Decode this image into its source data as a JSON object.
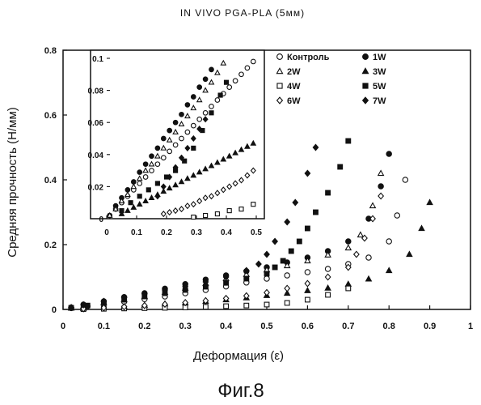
{
  "chart_data": {
    "type": "scatter",
    "title": "IN VIVO PGA-PLA (5мм)",
    "xlabel": "Деформация (ε)",
    "ylabel": "Средняя прочность (Н/мм)",
    "xlim": [
      0,
      1
    ],
    "ylim": [
      0,
      0.8
    ],
    "xticks": [
      "0",
      "0.1",
      "0.2",
      "0.3",
      "0.4",
      "0.5",
      "0.6",
      "0.7",
      "0.8",
      "0.9",
      "1"
    ],
    "yticks": [
      "0",
      "0.2",
      "0.4",
      "0.6",
      "0.8"
    ],
    "grid": false,
    "legend_position": "top-right",
    "series": [
      {
        "name": "Контроль",
        "marker": "circle-open",
        "x": [
          0.02,
          0.06,
          0.1,
          0.15,
          0.2,
          0.25,
          0.3,
          0.35,
          0.4,
          0.45,
          0.5,
          0.55,
          0.6,
          0.65,
          0.7,
          0.75,
          0.8,
          0.82,
          0.84
        ],
        "y": [
          0.004,
          0.01,
          0.016,
          0.024,
          0.032,
          0.04,
          0.05,
          0.06,
          0.071,
          0.083,
          0.095,
          0.105,
          0.115,
          0.125,
          0.14,
          0.16,
          0.21,
          0.29,
          0.4
        ]
      },
      {
        "name": "1W",
        "marker": "circle-filled",
        "x": [
          0.02,
          0.05,
          0.1,
          0.15,
          0.2,
          0.25,
          0.3,
          0.35,
          0.4,
          0.45,
          0.5,
          0.55,
          0.6,
          0.65,
          0.7,
          0.75,
          0.78,
          0.8
        ],
        "y": [
          0.006,
          0.015,
          0.025,
          0.038,
          0.05,
          0.064,
          0.078,
          0.092,
          0.105,
          0.118,
          0.13,
          0.145,
          0.16,
          0.18,
          0.21,
          0.28,
          0.38,
          0.48
        ]
      },
      {
        "name": "2W",
        "marker": "triangle-open",
        "x": [
          0.02,
          0.05,
          0.1,
          0.15,
          0.2,
          0.25,
          0.3,
          0.35,
          0.4,
          0.45,
          0.5,
          0.55,
          0.6,
          0.65,
          0.7,
          0.73,
          0.76,
          0.78
        ],
        "y": [
          0.004,
          0.01,
          0.02,
          0.03,
          0.04,
          0.053,
          0.066,
          0.08,
          0.095,
          0.108,
          0.122,
          0.135,
          0.15,
          0.168,
          0.19,
          0.23,
          0.32,
          0.42
        ]
      },
      {
        "name": "3W",
        "marker": "triangle-filled",
        "x": [
          0.05,
          0.1,
          0.15,
          0.2,
          0.25,
          0.3,
          0.35,
          0.4,
          0.45,
          0.5,
          0.55,
          0.6,
          0.65,
          0.7,
          0.75,
          0.8,
          0.85,
          0.88,
          0.9
        ],
        "y": [
          0.003,
          0.006,
          0.009,
          0.013,
          0.017,
          0.021,
          0.025,
          0.03,
          0.036,
          0.043,
          0.05,
          0.058,
          0.066,
          0.078,
          0.094,
          0.12,
          0.17,
          0.25,
          0.33
        ]
      },
      {
        "name": "4W",
        "marker": "square-open",
        "x": [
          0.05,
          0.1,
          0.15,
          0.2,
          0.25,
          0.3,
          0.35,
          0.4,
          0.45,
          0.5,
          0.55,
          0.6,
          0.65,
          0.7
        ],
        "y": [
          0.001,
          0.002,
          0.003,
          0.004,
          0.005,
          0.006,
          0.008,
          0.01,
          0.012,
          0.015,
          0.02,
          0.03,
          0.045,
          0.065
        ]
      },
      {
        "name": "5W",
        "marker": "square-filled",
        "x": [
          0.02,
          0.06,
          0.1,
          0.15,
          0.2,
          0.25,
          0.3,
          0.35,
          0.4,
          0.45,
          0.5,
          0.52,
          0.54,
          0.56,
          0.58,
          0.6,
          0.62,
          0.65,
          0.68,
          0.7
        ],
        "y": [
          0.005,
          0.012,
          0.02,
          0.03,
          0.04,
          0.05,
          0.06,
          0.07,
          0.082,
          0.095,
          0.11,
          0.13,
          0.15,
          0.18,
          0.21,
          0.25,
          0.3,
          0.36,
          0.44,
          0.52
        ]
      },
      {
        "name": "6W",
        "marker": "diamond-open",
        "x": [
          0.05,
          0.1,
          0.15,
          0.2,
          0.25,
          0.3,
          0.35,
          0.4,
          0.45,
          0.5,
          0.55,
          0.6,
          0.65,
          0.7,
          0.72,
          0.74,
          0.76,
          0.78
        ],
        "y": [
          0.002,
          0.005,
          0.008,
          0.012,
          0.016,
          0.021,
          0.027,
          0.034,
          0.042,
          0.052,
          0.065,
          0.08,
          0.1,
          0.13,
          0.17,
          0.22,
          0.28,
          0.35
        ]
      },
      {
        "name": "7W",
        "marker": "diamond-filled",
        "x": [
          0.02,
          0.05,
          0.1,
          0.15,
          0.2,
          0.25,
          0.3,
          0.35,
          0.4,
          0.45,
          0.48,
          0.5,
          0.52,
          0.55,
          0.57,
          0.6,
          0.62
        ],
        "y": [
          0.006,
          0.014,
          0.025,
          0.036,
          0.048,
          0.06,
          0.072,
          0.085,
          0.1,
          0.12,
          0.14,
          0.17,
          0.21,
          0.27,
          0.33,
          0.42,
          0.5
        ]
      }
    ],
    "inset": {
      "xlim": [
        0,
        0.5
      ],
      "ylim": [
        0,
        0.1
      ],
      "xticks": [
        "0",
        "0.1",
        "0.2",
        "0.3",
        "0.4",
        "0.5"
      ],
      "yticks": [
        "0",
        "0.02",
        "0.04",
        "0.06",
        "0.08",
        "0.1"
      ],
      "series": [
        {
          "name": "Контроль",
          "marker": "circle-open",
          "x": [
            0.01,
            0.03,
            0.05,
            0.07,
            0.09,
            0.11,
            0.13,
            0.15,
            0.17,
            0.19,
            0.21,
            0.23,
            0.25,
            0.27,
            0.29,
            0.31,
            0.33,
            0.35,
            0.37,
            0.39,
            0.41,
            0.43,
            0.45,
            0.47,
            0.49
          ],
          "y": [
            0.002,
            0.006,
            0.01,
            0.014,
            0.018,
            0.022,
            0.026,
            0.03,
            0.034,
            0.038,
            0.042,
            0.046,
            0.05,
            0.054,
            0.058,
            0.062,
            0.066,
            0.07,
            0.074,
            0.078,
            0.082,
            0.086,
            0.09,
            0.094,
            0.098
          ]
        },
        {
          "name": "1W",
          "marker": "circle-filled",
          "x": [
            0.01,
            0.03,
            0.05,
            0.07,
            0.09,
            0.11,
            0.13,
            0.15,
            0.17,
            0.19,
            0.21,
            0.23,
            0.25,
            0.27,
            0.29,
            0.31,
            0.33,
            0.35
          ],
          "y": [
            0.002,
            0.008,
            0.013,
            0.018,
            0.023,
            0.029,
            0.034,
            0.039,
            0.044,
            0.05,
            0.055,
            0.06,
            0.065,
            0.071,
            0.076,
            0.082,
            0.087,
            0.093
          ]
        },
        {
          "name": "2W",
          "marker": "triangle-open",
          "x": [
            0.01,
            0.03,
            0.05,
            0.07,
            0.09,
            0.11,
            0.13,
            0.15,
            0.17,
            0.19,
            0.21,
            0.23,
            0.25,
            0.27,
            0.29,
            0.31,
            0.33,
            0.35,
            0.37,
            0.39
          ],
          "y": [
            0.002,
            0.006,
            0.011,
            0.015,
            0.02,
            0.025,
            0.03,
            0.034,
            0.039,
            0.044,
            0.049,
            0.054,
            0.059,
            0.064,
            0.069,
            0.074,
            0.08,
            0.085,
            0.091,
            0.097
          ]
        },
        {
          "name": "3W",
          "marker": "triangle-filled",
          "x": [
            0.05,
            0.07,
            0.09,
            0.11,
            0.13,
            0.15,
            0.17,
            0.19,
            0.21,
            0.23,
            0.25,
            0.27,
            0.29,
            0.31,
            0.33,
            0.35,
            0.37,
            0.39,
            0.41,
            0.43,
            0.45,
            0.47,
            0.49
          ],
          "y": [
            0.003,
            0.005,
            0.007,
            0.009,
            0.011,
            0.013,
            0.015,
            0.017,
            0.019,
            0.021,
            0.023,
            0.025,
            0.027,
            0.029,
            0.031,
            0.033,
            0.035,
            0.037,
            0.039,
            0.041,
            0.043,
            0.045,
            0.047
          ]
        },
        {
          "name": "4W",
          "marker": "square-open",
          "x": [
            0.29,
            0.33,
            0.37,
            0.41,
            0.45,
            0.49
          ],
          "y": [
            0.001,
            0.002,
            0.003,
            0.005,
            0.006,
            0.009
          ]
        },
        {
          "name": "5W",
          "marker": "square-filled",
          "x": [
            0.05,
            0.08,
            0.11,
            0.14,
            0.17,
            0.2,
            0.23,
            0.26,
            0.29,
            0.32,
            0.35,
            0.38,
            0.4
          ],
          "y": [
            0.005,
            0.01,
            0.014,
            0.018,
            0.022,
            0.026,
            0.03,
            0.036,
            0.044,
            0.055,
            0.066,
            0.077,
            0.085
          ]
        },
        {
          "name": "6W",
          "marker": "diamond-open",
          "x": [
            0.19,
            0.21,
            0.23,
            0.25,
            0.27,
            0.29,
            0.31,
            0.33,
            0.35,
            0.37,
            0.39,
            0.41,
            0.43,
            0.45,
            0.47,
            0.49
          ],
          "y": [
            0.003,
            0.004,
            0.005,
            0.006,
            0.008,
            0.009,
            0.011,
            0.013,
            0.014,
            0.016,
            0.018,
            0.02,
            0.022,
            0.024,
            0.027,
            0.03
          ]
        },
        {
          "name": "7W",
          "marker": "diamond-filled",
          "x": [
            0.17,
            0.19,
            0.21,
            0.23,
            0.25,
            0.27,
            0.29,
            0.31,
            0.33
          ],
          "y": [
            0.014,
            0.02,
            0.026,
            0.032,
            0.038,
            0.044,
            0.05,
            0.056,
            0.062
          ]
        }
      ]
    }
  },
  "figure_caption": "Фиг.8"
}
